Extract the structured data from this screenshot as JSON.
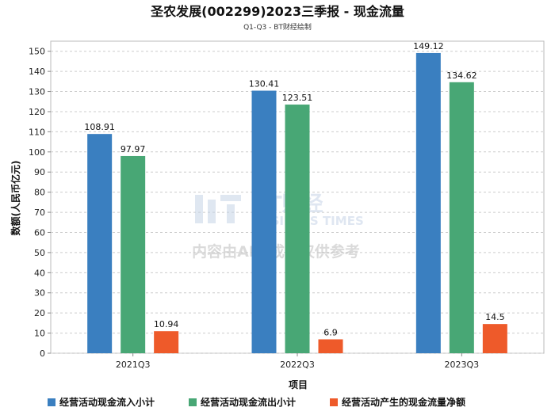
{
  "chart_data": {
    "type": "bar",
    "title": "圣农发展(002299)2023三季报 - 现金流量",
    "subtitle": "Q1-Q3 - BT财经绘制",
    "xlabel": "项目",
    "ylabel": "数额(人民币亿元)",
    "ylim": [
      0,
      155
    ],
    "yticks": [
      0,
      10,
      20,
      30,
      40,
      50,
      60,
      70,
      80,
      90,
      100,
      110,
      120,
      130,
      140,
      150
    ],
    "grid": true,
    "legend": "bottom",
    "categories": [
      "2021Q3",
      "2022Q3",
      "2023Q3"
    ],
    "series": [
      {
        "name": "经营活动现金流入小计",
        "color": "#3a7fc0",
        "values": [
          108.91,
          130.41,
          149.12
        ]
      },
      {
        "name": "经营活动现金流出小计",
        "color": "#48a775",
        "values": [
          97.97,
          123.51,
          134.62
        ]
      },
      {
        "name": "经营活动产生的现金流量净额",
        "color": "#ee5a2a",
        "values": [
          10.94,
          6.9,
          14.5
        ]
      }
    ]
  },
  "watermark": {
    "brand": "BT财经",
    "brand_en": "BUSINESS TIMES",
    "notice": "内容由AI生成，仅供参考"
  }
}
